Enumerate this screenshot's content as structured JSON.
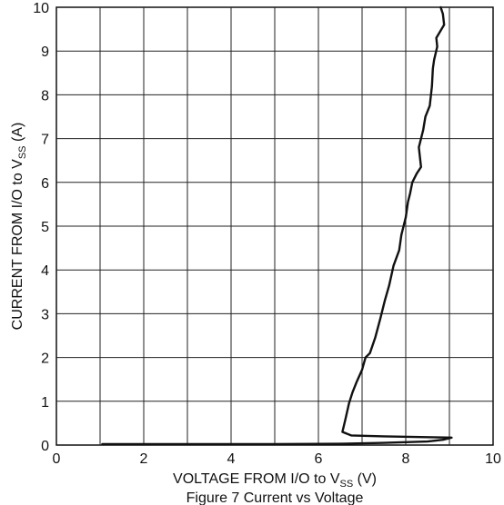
{
  "chart_data": {
    "type": "line",
    "xlabel": {
      "main": "VOLTAGE FROM I/O to V",
      "sub": "SS",
      "unit": " (V)"
    },
    "ylabel": {
      "main": "CURRENT  FROM I/O to V",
      "sub": "SS",
      "unit": " (A)"
    },
    "caption": "Figure 7 Current vs Voltage",
    "xlim": [
      0,
      10
    ],
    "ylim": [
      0,
      10
    ],
    "xticks": [
      "0",
      "2",
      "4",
      "6",
      "8",
      "10"
    ],
    "yticks": [
      "0",
      "1",
      "2",
      "3",
      "4",
      "5",
      "6",
      "7",
      "8",
      "9",
      "10"
    ],
    "grid": true,
    "series": [
      {
        "color": "#111111",
        "points": [
          [
            1.05,
            0.02
          ],
          [
            3.0,
            0.02
          ],
          [
            5.0,
            0.02
          ],
          [
            6.5,
            0.03
          ],
          [
            7.5,
            0.05
          ],
          [
            8.5,
            0.08
          ],
          [
            8.85,
            0.12
          ],
          [
            9.05,
            0.17
          ],
          [
            7.5,
            0.2
          ],
          [
            6.75,
            0.22
          ],
          [
            6.55,
            0.3
          ],
          [
            6.62,
            0.6
          ],
          [
            6.7,
            0.95
          ],
          [
            6.78,
            1.2
          ],
          [
            6.88,
            1.45
          ],
          [
            7.0,
            1.72
          ],
          [
            7.08,
            2.0
          ],
          [
            7.18,
            2.1
          ],
          [
            7.3,
            2.45
          ],
          [
            7.42,
            2.9
          ],
          [
            7.52,
            3.3
          ],
          [
            7.62,
            3.65
          ],
          [
            7.72,
            4.1
          ],
          [
            7.85,
            4.45
          ],
          [
            7.9,
            4.8
          ],
          [
            8.0,
            5.2
          ],
          [
            8.05,
            5.55
          ],
          [
            8.1,
            5.75
          ],
          [
            8.15,
            6.0
          ],
          [
            8.25,
            6.2
          ],
          [
            8.35,
            6.35
          ],
          [
            8.3,
            6.8
          ],
          [
            8.4,
            7.2
          ],
          [
            8.45,
            7.5
          ],
          [
            8.55,
            7.75
          ],
          [
            8.6,
            8.2
          ],
          [
            8.62,
            8.6
          ],
          [
            8.65,
            8.8
          ],
          [
            8.72,
            9.1
          ],
          [
            8.7,
            9.3
          ],
          [
            8.88,
            9.6
          ],
          [
            8.85,
            9.85
          ],
          [
            8.8,
            10.0
          ]
        ]
      }
    ]
  }
}
